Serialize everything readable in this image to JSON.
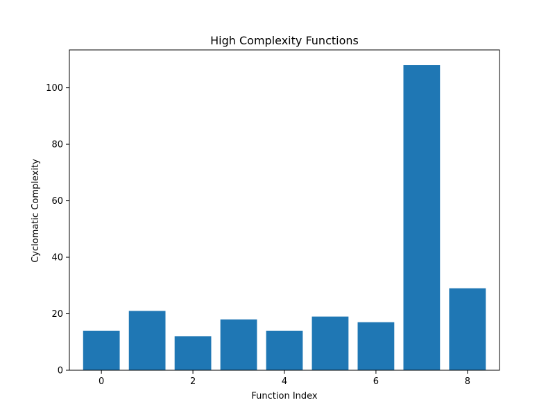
{
  "chart_data": {
    "type": "bar",
    "title": "High Complexity Functions",
    "xlabel": "Function Index",
    "ylabel": "Cyclomatic Complexity",
    "categories": [
      0,
      1,
      2,
      3,
      4,
      5,
      6,
      7,
      8
    ],
    "values": [
      14,
      21,
      12,
      18,
      14,
      19,
      17,
      108,
      29
    ],
    "xlim": [
      -0.7,
      8.7
    ],
    "ylim": [
      0,
      113.4
    ],
    "xticks": [
      0,
      2,
      4,
      6,
      8
    ],
    "yticks": [
      0,
      20,
      40,
      60,
      80,
      100
    ],
    "bar_color": "#1f77b4",
    "grid": false,
    "legend": "none"
  }
}
